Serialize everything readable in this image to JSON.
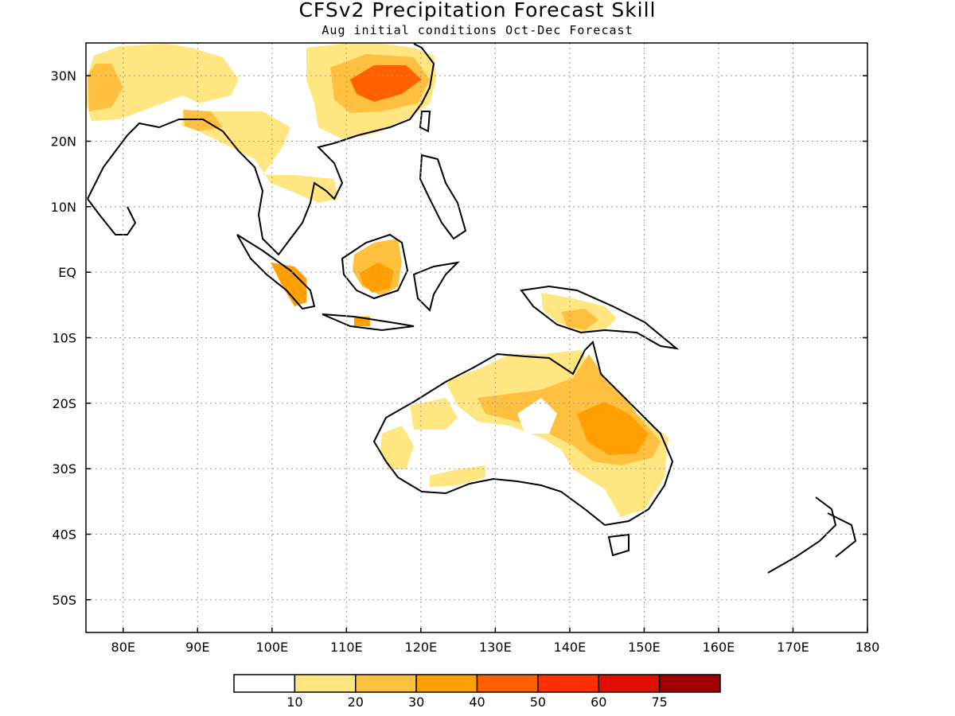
{
  "title": "CFSv2 Precipitation Forecast Skill",
  "subtitle": "Aug initial conditions  Oct-Dec Forecast",
  "map": {
    "lon_range": [
      75,
      180
    ],
    "lat_range": [
      -55,
      35
    ],
    "lat_ticks": [
      {
        "value": 30,
        "label": "30N"
      },
      {
        "value": 20,
        "label": "20N"
      },
      {
        "value": 10,
        "label": "10N"
      },
      {
        "value": 0,
        "label": "EQ"
      },
      {
        "value": -10,
        "label": "10S"
      },
      {
        "value": -20,
        "label": "20S"
      },
      {
        "value": -30,
        "label": "30S"
      },
      {
        "value": -40,
        "label": "40S"
      },
      {
        "value": -50,
        "label": "50S"
      }
    ],
    "lon_ticks": [
      {
        "value": 80,
        "label": "80E"
      },
      {
        "value": 90,
        "label": "90E"
      },
      {
        "value": 100,
        "label": "100E"
      },
      {
        "value": 110,
        "label": "110E"
      },
      {
        "value": 120,
        "label": "120E"
      },
      {
        "value": 130,
        "label": "130E"
      },
      {
        "value": 140,
        "label": "140E"
      },
      {
        "value": 150,
        "label": "150E"
      },
      {
        "value": 160,
        "label": "160E"
      },
      {
        "value": 170,
        "label": "170E"
      },
      {
        "value": 180,
        "label": "180"
      }
    ],
    "grid": "dotted"
  },
  "colorbar": {
    "colors": [
      "#ffffff",
      "#ffe680",
      "#ffc040",
      "#ffa000",
      "#ff6000",
      "#ff3000",
      "#e01000",
      "#a00000"
    ],
    "labels": [
      "10",
      "20",
      "30",
      "40",
      "50",
      "60",
      "75"
    ]
  }
}
